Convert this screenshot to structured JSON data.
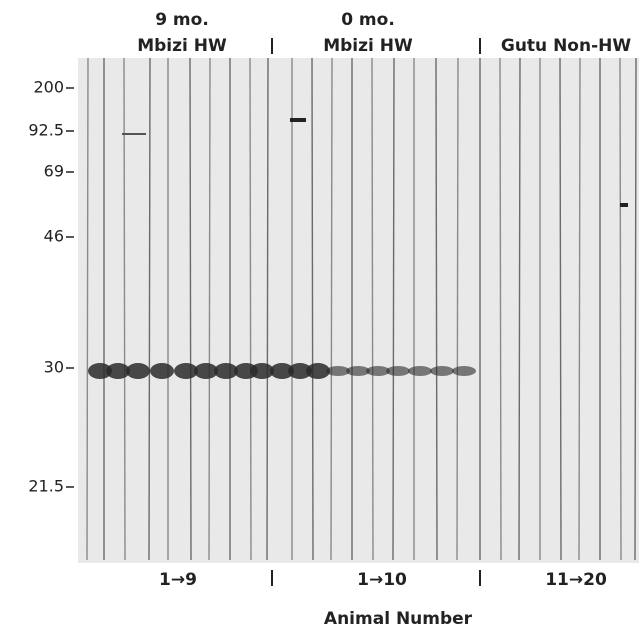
{
  "header": {
    "groups": [
      {
        "time": "9 mo.",
        "site": "Mbizi HW"
      },
      {
        "time": "0 mo.",
        "site": "Mbizi HW"
      },
      {
        "site": "Gutu Non-HW"
      }
    ]
  },
  "markers": [
    "200",
    "92.5",
    "69",
    "46",
    "30",
    "21.5"
  ],
  "lanes": [
    "1→9",
    "1→10",
    "11→20"
  ],
  "x_axis_label": "Animal Number"
}
